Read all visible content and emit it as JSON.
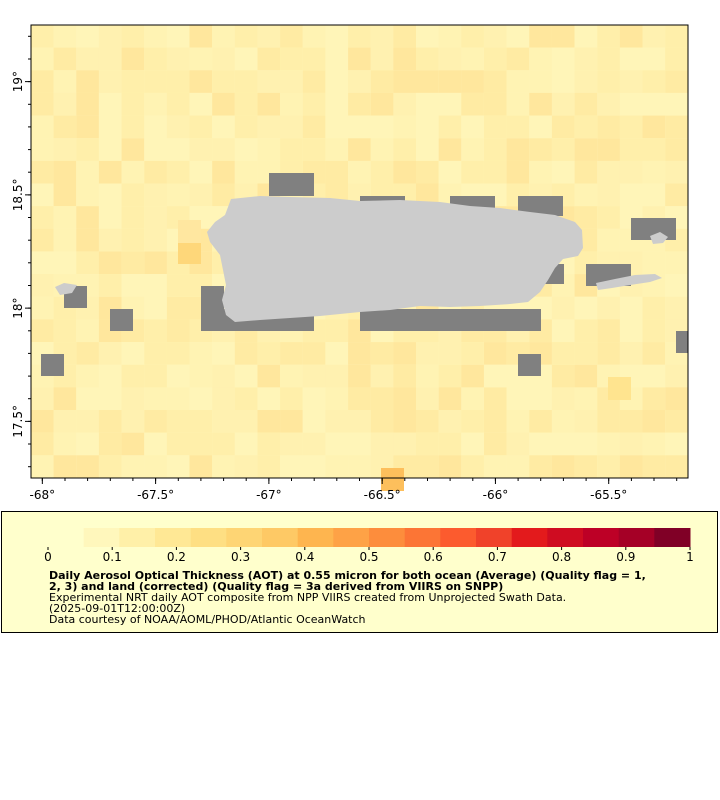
{
  "map": {
    "lon_ticks": [
      "-68°",
      "-67.5°",
      "-67°",
      "-66.5°",
      "-66°",
      "-65.5°"
    ],
    "lat_ticks": [
      "19°",
      "18.5°",
      "18°",
      "17.5°"
    ],
    "lon_range": [
      -68.05,
      -65.15
    ],
    "lat_range": [
      17.25,
      19.25
    ],
    "land_color": "#cccccc",
    "missing_color": "#808080",
    "background_color": "#fff5b8"
  },
  "legend": {
    "ticks": [
      "0",
      "0.1",
      "0.2",
      "0.3",
      "0.4",
      "0.5",
      "0.6",
      "0.7",
      "0.8",
      "0.9",
      "1"
    ],
    "range": [
      0,
      1
    ],
    "colors": [
      "#ffffcc",
      "#fff7bc",
      "#fff0a8",
      "#ffe895",
      "#fedf83",
      "#fed574",
      "#fec965",
      "#feb54f",
      "#fea246",
      "#fd8d3c",
      "#fc7535",
      "#fc5b2e",
      "#f0422a",
      "#e31a1c",
      "#cf0c21",
      "#bd0026",
      "#a50026",
      "#800026"
    ],
    "title_line1": "Daily Aerosol Optical Thickness (AOT) at 0.55 micron for both ocean (Average) (Quality flag = 1,",
    "title_line2": "2, 3) and land (corrected) (Quality flag = 3a derived from VIIRS on SNPP)",
    "line3": "Experimental NRT daily AOT composite from NPP VIIRS created from Unprojected Swath Data.",
    "line4": "(2025-09-01T12:00:00Z)",
    "line5": "Data courtesy of NOAA/AOML/PHOD/Atlantic OceanWatch"
  }
}
